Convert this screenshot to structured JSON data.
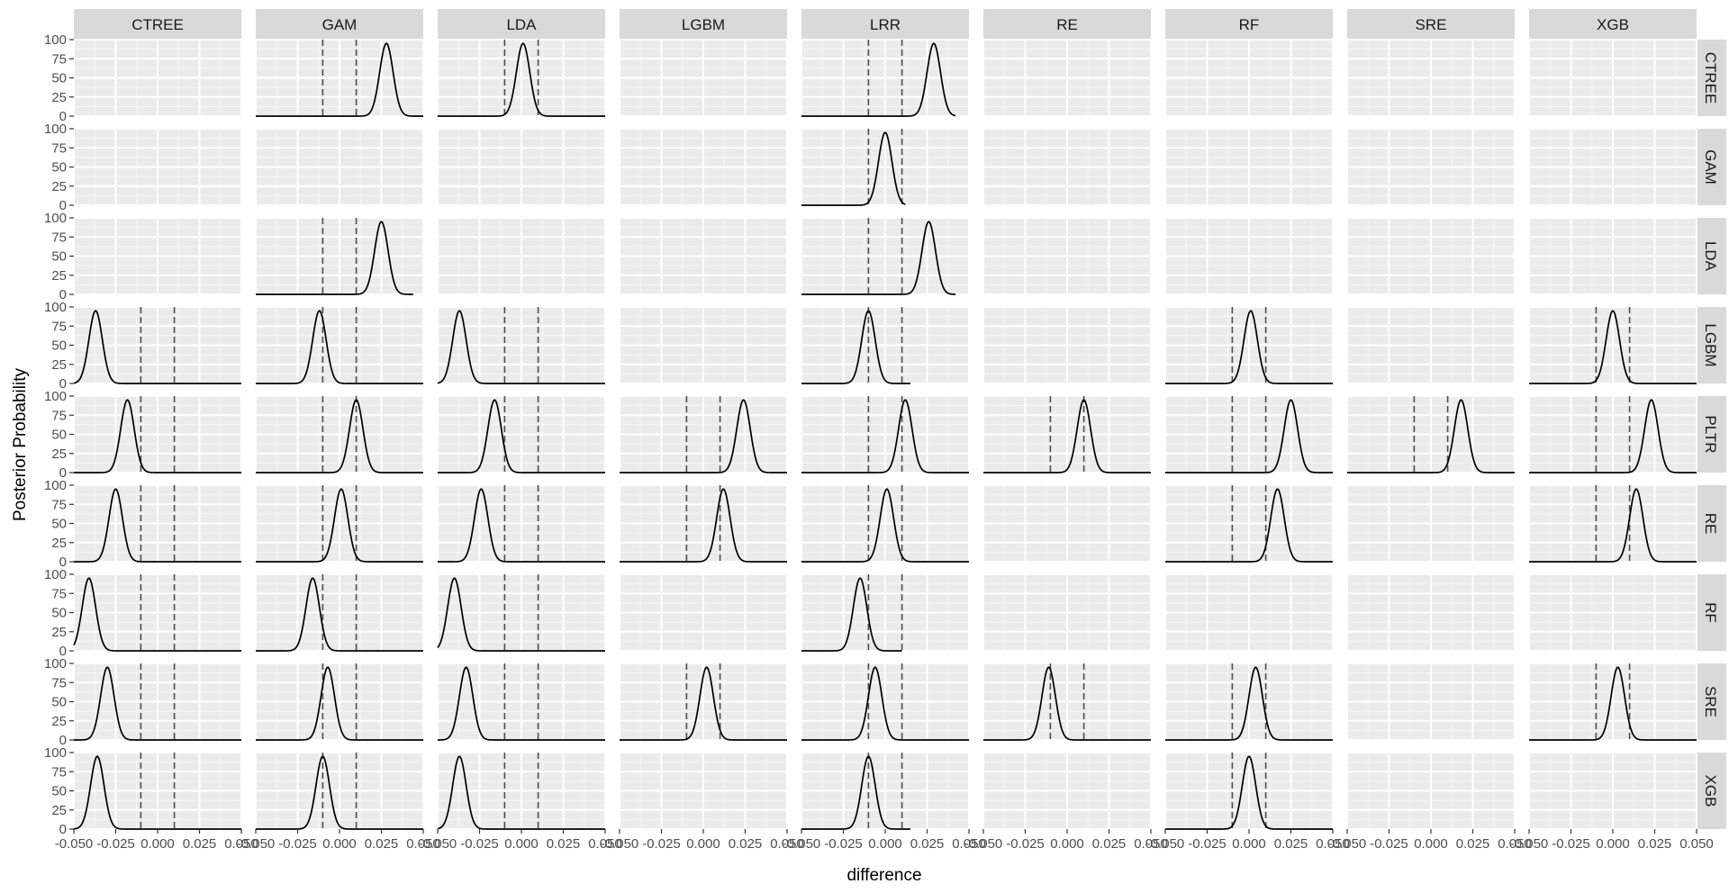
{
  "chart_data": {
    "type": "line",
    "facet_layout": "grid",
    "xlabel": "difference",
    "ylabel": "Posterior Probability",
    "col_facets": [
      "CTREE",
      "GAM",
      "LDA",
      "LGBM",
      "LRR",
      "RE",
      "RF",
      "SRE",
      "XGB"
    ],
    "row_facets": [
      "CTREE",
      "GAM",
      "LDA",
      "LGBM",
      "PLTR",
      "RE",
      "RF",
      "SRE",
      "XGB"
    ],
    "xlim": [
      -0.05,
      0.05
    ],
    "ylim": [
      0,
      100
    ],
    "x_ticks": [
      -0.05,
      -0.025,
      0.0,
      0.025,
      0.05
    ],
    "x_tick_labels": [
      "-0.050",
      "-0.025",
      "0.000",
      "0.025",
      "0.050"
    ],
    "y_ticks": [
      0,
      25,
      50,
      75,
      100
    ],
    "y_tick_labels": [
      "0",
      "25",
      "50",
      "75",
      "100"
    ],
    "grid": true,
    "rope_lines": [
      -0.01,
      0.01
    ],
    "panel_background": "#ebebeb",
    "strip_background": "#d9d9d9",
    "line_color": "#000000",
    "rope_line_color": "#4d4d4d",
    "curve_sd": 0.004,
    "curve_peak": 95,
    "panels": [
      {
        "row": "CTREE",
        "col": "GAM",
        "mean": 0.028,
        "x_range": [
          -0.05,
          0.05
        ]
      },
      {
        "row": "CTREE",
        "col": "LDA",
        "mean": 0.001,
        "x_range": [
          -0.05,
          0.05
        ]
      },
      {
        "row": "CTREE",
        "col": "LRR",
        "mean": 0.029,
        "x_range": [
          -0.05,
          0.042
        ]
      },
      {
        "row": "GAM",
        "col": "LRR",
        "mean": 0.0,
        "x_range": [
          -0.05,
          0.012
        ]
      },
      {
        "row": "LDA",
        "col": "GAM",
        "mean": 0.025,
        "x_range": [
          -0.05,
          0.044
        ]
      },
      {
        "row": "LDA",
        "col": "LRR",
        "mean": 0.026,
        "x_range": [
          -0.05,
          0.042
        ]
      },
      {
        "row": "LGBM",
        "col": "CTREE",
        "mean": -0.037,
        "x_range": [
          -0.05,
          0.05
        ]
      },
      {
        "row": "LGBM",
        "col": "GAM",
        "mean": -0.012,
        "x_range": [
          -0.05,
          0.05
        ]
      },
      {
        "row": "LGBM",
        "col": "LDA",
        "mean": -0.037,
        "x_range": [
          -0.05,
          0.05
        ]
      },
      {
        "row": "LGBM",
        "col": "LRR",
        "mean": -0.01,
        "x_range": [
          -0.05,
          0.015
        ]
      },
      {
        "row": "LGBM",
        "col": "RF",
        "mean": 0.001,
        "x_range": [
          -0.05,
          0.05
        ]
      },
      {
        "row": "LGBM",
        "col": "XGB",
        "mean": 0.0,
        "x_range": [
          -0.05,
          0.05
        ]
      },
      {
        "row": "PLTR",
        "col": "CTREE",
        "mean": -0.018,
        "x_range": [
          -0.05,
          0.05
        ]
      },
      {
        "row": "PLTR",
        "col": "GAM",
        "mean": 0.01,
        "x_range": [
          -0.05,
          0.05
        ]
      },
      {
        "row": "PLTR",
        "col": "LDA",
        "mean": -0.016,
        "x_range": [
          -0.05,
          0.05
        ]
      },
      {
        "row": "PLTR",
        "col": "LGBM",
        "mean": 0.024,
        "x_range": [
          -0.05,
          0.05
        ]
      },
      {
        "row": "PLTR",
        "col": "LRR",
        "mean": 0.012,
        "x_range": [
          -0.05,
          0.05
        ]
      },
      {
        "row": "PLTR",
        "col": "RE",
        "mean": 0.01,
        "x_range": [
          -0.05,
          0.05
        ]
      },
      {
        "row": "PLTR",
        "col": "RF",
        "mean": 0.025,
        "x_range": [
          -0.05,
          0.05
        ]
      },
      {
        "row": "PLTR",
        "col": "SRE",
        "mean": 0.018,
        "x_range": [
          -0.05,
          0.05
        ]
      },
      {
        "row": "PLTR",
        "col": "XGB",
        "mean": 0.023,
        "x_range": [
          -0.05,
          0.05
        ]
      },
      {
        "row": "RE",
        "col": "CTREE",
        "mean": -0.025,
        "x_range": [
          -0.05,
          0.05
        ]
      },
      {
        "row": "RE",
        "col": "GAM",
        "mean": 0.001,
        "x_range": [
          -0.05,
          0.05
        ]
      },
      {
        "row": "RE",
        "col": "LDA",
        "mean": -0.024,
        "x_range": [
          -0.05,
          0.05
        ]
      },
      {
        "row": "RE",
        "col": "LGBM",
        "mean": 0.012,
        "x_range": [
          -0.05,
          0.05
        ]
      },
      {
        "row": "RE",
        "col": "LRR",
        "mean": 0.001,
        "x_range": [
          -0.05,
          0.05
        ]
      },
      {
        "row": "RE",
        "col": "RF",
        "mean": 0.017,
        "x_range": [
          -0.05,
          0.05
        ]
      },
      {
        "row": "RE",
        "col": "XGB",
        "mean": 0.014,
        "x_range": [
          -0.05,
          0.05
        ]
      },
      {
        "row": "RF",
        "col": "CTREE",
        "mean": -0.041,
        "x_range": [
          -0.05,
          0.05
        ]
      },
      {
        "row": "RF",
        "col": "GAM",
        "mean": -0.016,
        "x_range": [
          -0.05,
          0.05
        ]
      },
      {
        "row": "RF",
        "col": "LDA",
        "mean": -0.04,
        "x_range": [
          -0.05,
          0.05
        ]
      },
      {
        "row": "RF",
        "col": "LRR",
        "mean": -0.015,
        "x_range": [
          -0.05,
          0.01
        ]
      },
      {
        "row": "SRE",
        "col": "CTREE",
        "mean": -0.03,
        "x_range": [
          -0.05,
          0.05
        ]
      },
      {
        "row": "SRE",
        "col": "GAM",
        "mean": -0.007,
        "x_range": [
          -0.05,
          0.05
        ]
      },
      {
        "row": "SRE",
        "col": "LDA",
        "mean": -0.033,
        "x_range": [
          -0.05,
          0.05
        ]
      },
      {
        "row": "SRE",
        "col": "LGBM",
        "mean": 0.002,
        "x_range": [
          -0.05,
          0.05
        ]
      },
      {
        "row": "SRE",
        "col": "LRR",
        "mean": -0.006,
        "x_range": [
          -0.05,
          0.05
        ]
      },
      {
        "row": "SRE",
        "col": "RE",
        "mean": -0.011,
        "x_range": [
          -0.05,
          0.05
        ]
      },
      {
        "row": "SRE",
        "col": "RF",
        "mean": 0.004,
        "x_range": [
          -0.05,
          0.05
        ]
      },
      {
        "row": "SRE",
        "col": "XGB",
        "mean": 0.003,
        "x_range": [
          -0.05,
          0.05
        ]
      },
      {
        "row": "XGB",
        "col": "CTREE",
        "mean": -0.036,
        "x_range": [
          -0.05,
          0.05
        ]
      },
      {
        "row": "XGB",
        "col": "GAM",
        "mean": -0.01,
        "x_range": [
          -0.05,
          0.05
        ]
      },
      {
        "row": "XGB",
        "col": "LDA",
        "mean": -0.037,
        "x_range": [
          -0.05,
          0.05
        ]
      },
      {
        "row": "XGB",
        "col": "LRR",
        "mean": -0.01,
        "x_range": [
          -0.05,
          0.015
        ]
      },
      {
        "row": "XGB",
        "col": "RF",
        "mean": 0.0,
        "x_range": [
          -0.05,
          0.05
        ]
      }
    ]
  }
}
